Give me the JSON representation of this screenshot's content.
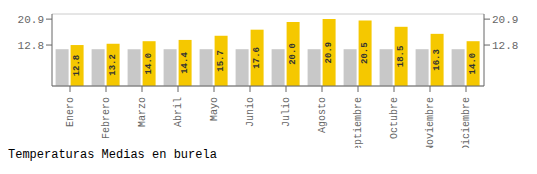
{
  "chart_data": {
    "type": "bar",
    "title": "Temperaturas Medias en burela",
    "categories": [
      "Enero",
      "Febrero",
      "Marzo",
      "Abril",
      "Mayo",
      "Junio",
      "Julio",
      "Agosto",
      "Septiembre",
      "Octubre",
      "Noviembre",
      "Diciembre"
    ],
    "series": [
      {
        "color": "#C8C8C8",
        "values": [
          11.5,
          11.5,
          11.5,
          11.5,
          11.5,
          11.5,
          11.5,
          11.5,
          11.5,
          11.5,
          11.5,
          11.5
        ]
      },
      {
        "color": "#F5C800",
        "values": [
          12.8,
          13.2,
          14.0,
          14.4,
          15.7,
          17.6,
          20.0,
          20.9,
          20.5,
          18.5,
          16.3,
          14.0
        ],
        "value_labels": [
          "12.8",
          "13.2",
          "14.0",
          "14.4",
          "15.7",
          "17.6",
          "20.0",
          "20.9",
          "20.5",
          "18.5",
          "16.3",
          "14.0"
        ],
        "data_labels": true
      }
    ],
    "ylim": [
      0,
      22.5
    ],
    "yticks": [
      12.8,
      20.9
    ],
    "y2lim": [
      0,
      22.5
    ],
    "y2ticks": [
      12.8,
      20.9
    ],
    "grid": true
  }
}
